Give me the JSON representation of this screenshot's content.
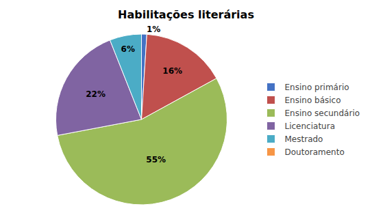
{
  "chart_data": {
    "type": "pie",
    "title": "Habilitações literárias",
    "categories": [
      "Ensino primário",
      "Ensino básico",
      "Ensino secundário",
      "Licenciatura",
      "Mestrado",
      "Doutoramento"
    ],
    "values": [
      1,
      16,
      55,
      22,
      6,
      0
    ],
    "value_labels": [
      "1%",
      "16%",
      "55%",
      "22%",
      "6%",
      null
    ],
    "colors": [
      "#4472C4",
      "#C0504D",
      "#9BBB59",
      "#8064A2",
      "#4BACC6",
      "#F79646"
    ],
    "data_labels": true,
    "legend": "right"
  }
}
